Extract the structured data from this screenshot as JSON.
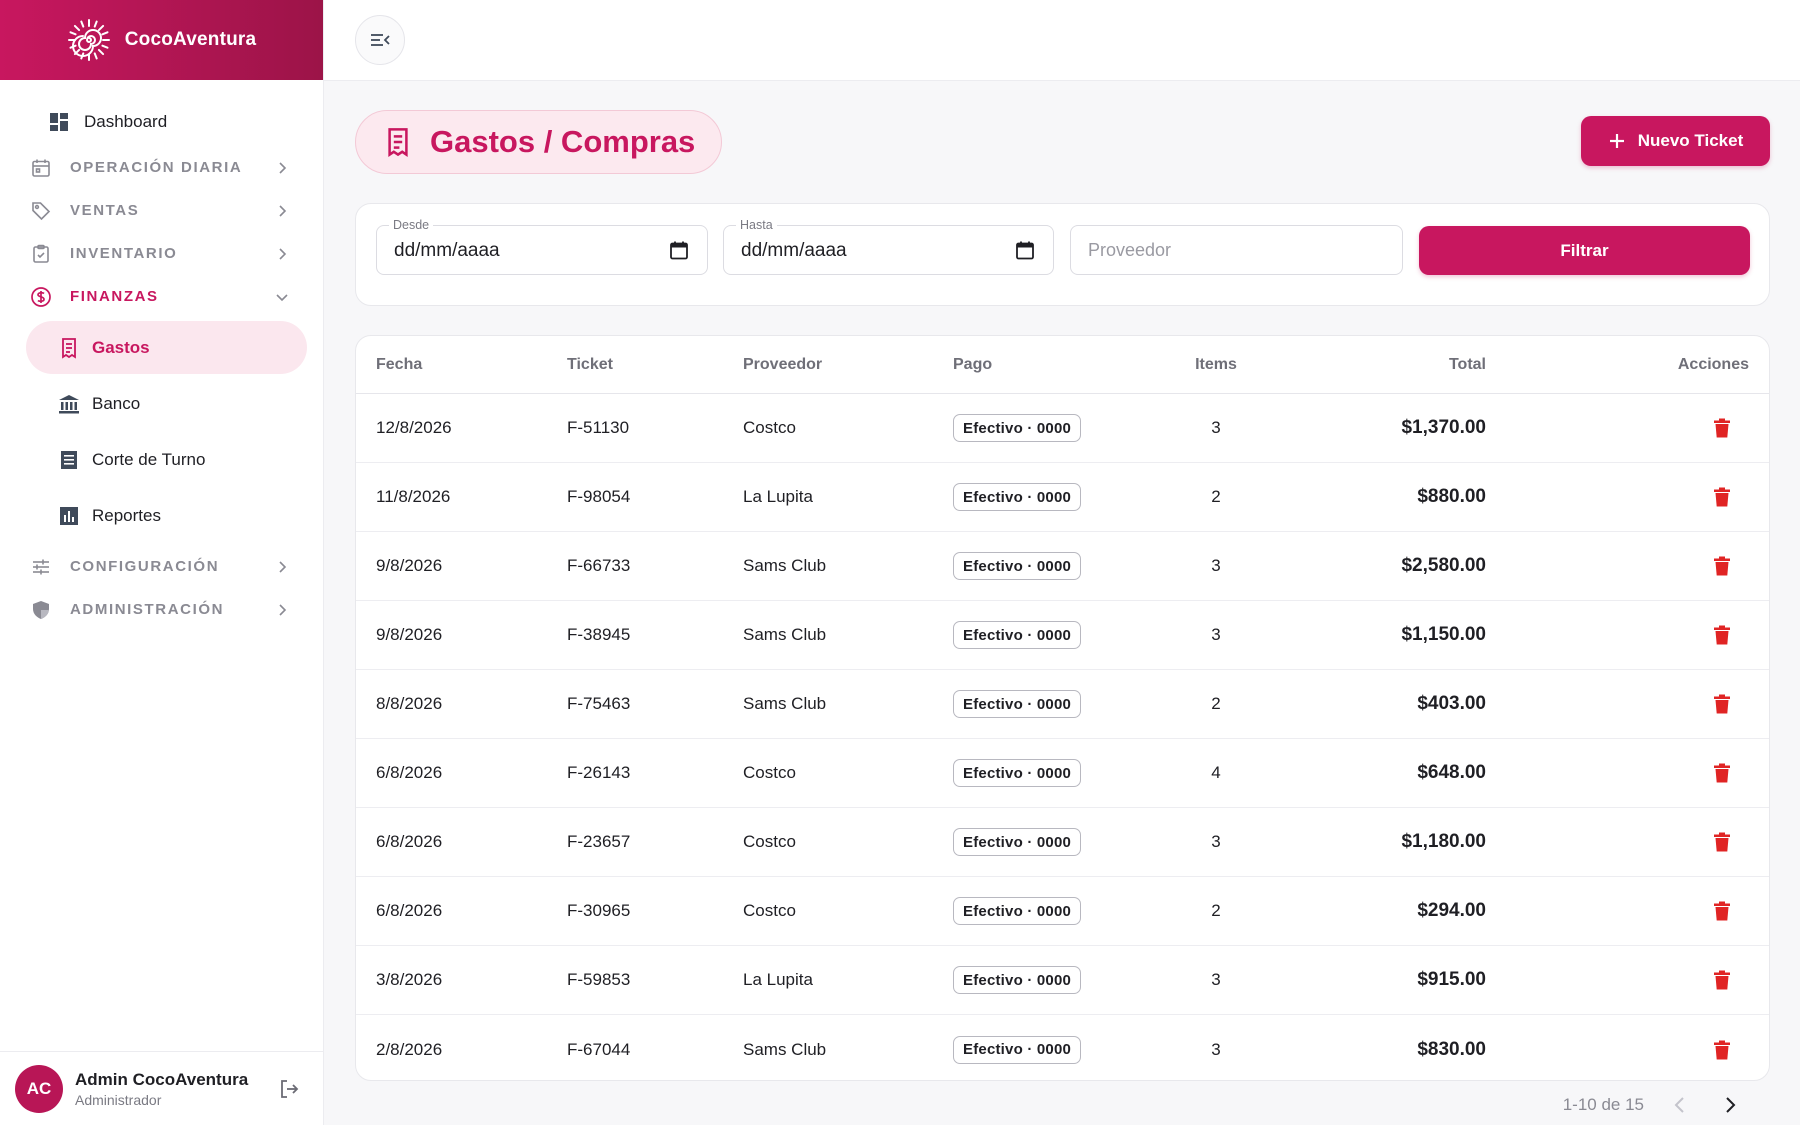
{
  "brand": {
    "name": "CocoAventura"
  },
  "colors": {
    "accent": "#c8175f",
    "accent_soft": "#fce9ef",
    "danger": "#e02424"
  },
  "sidebar": {
    "dashboard": {
      "label": "Dashboard",
      "icon": "dashboard-icon"
    },
    "sections": [
      {
        "label": "OPERACIÓN DIARIA",
        "icon": "calendar-icon"
      },
      {
        "label": "VENTAS",
        "icon": "tag-icon"
      },
      {
        "label": "INVENTARIO",
        "icon": "clipboard-icon"
      },
      {
        "label": "FINANZAS",
        "icon": "dollar-circle-icon",
        "open": true
      },
      {
        "label": "CONFIGURACIÓN",
        "icon": "sliders-icon"
      },
      {
        "label": "ADMINISTRACIÓN",
        "icon": "shield-icon"
      }
    ],
    "finanzas_items": [
      {
        "label": "Gastos",
        "icon": "receipt-icon",
        "active": true
      },
      {
        "label": "Banco",
        "icon": "bank-icon"
      },
      {
        "label": "Corte de Turno",
        "icon": "list-icon"
      },
      {
        "label": "Reportes",
        "icon": "bar-chart-icon"
      }
    ]
  },
  "user": {
    "initials": "AC",
    "name": "Admin CocoAventura",
    "role": "Administrador"
  },
  "page": {
    "title": "Gastos / Compras",
    "new_button": "Nuevo Ticket"
  },
  "filters": {
    "desde": {
      "label": "Desde",
      "value": "dd/mm/aaaa"
    },
    "hasta": {
      "label": "Hasta",
      "value": "dd/mm/aaaa"
    },
    "proveedor": {
      "placeholder": "Proveedor"
    },
    "submit": "Filtrar"
  },
  "table": {
    "columns": [
      "Fecha",
      "Ticket",
      "Proveedor",
      "Pago",
      "Items",
      "Total",
      "Acciones"
    ],
    "rows": [
      {
        "fecha": "12/8/2026",
        "ticket": "F-51130",
        "proveedor": "Costco",
        "pago": "Efectivo · 0000",
        "items": "3",
        "total": "$1,370.00"
      },
      {
        "fecha": "11/8/2026",
        "ticket": "F-98054",
        "proveedor": "La Lupita",
        "pago": "Efectivo · 0000",
        "items": "2",
        "total": "$880.00"
      },
      {
        "fecha": "9/8/2026",
        "ticket": "F-66733",
        "proveedor": "Sams Club",
        "pago": "Efectivo · 0000",
        "items": "3",
        "total": "$2,580.00"
      },
      {
        "fecha": "9/8/2026",
        "ticket": "F-38945",
        "proveedor": "Sams Club",
        "pago": "Efectivo · 0000",
        "items": "3",
        "total": "$1,150.00"
      },
      {
        "fecha": "8/8/2026",
        "ticket": "F-75463",
        "proveedor": "Sams Club",
        "pago": "Efectivo · 0000",
        "items": "2",
        "total": "$403.00"
      },
      {
        "fecha": "6/8/2026",
        "ticket": "F-26143",
        "proveedor": "Costco",
        "pago": "Efectivo · 0000",
        "items": "4",
        "total": "$648.00"
      },
      {
        "fecha": "6/8/2026",
        "ticket": "F-23657",
        "proveedor": "Costco",
        "pago": "Efectivo · 0000",
        "items": "3",
        "total": "$1,180.00"
      },
      {
        "fecha": "6/8/2026",
        "ticket": "F-30965",
        "proveedor": "Costco",
        "pago": "Efectivo · 0000",
        "items": "2",
        "total": "$294.00"
      },
      {
        "fecha": "3/8/2026",
        "ticket": "F-59853",
        "proveedor": "La Lupita",
        "pago": "Efectivo · 0000",
        "items": "3",
        "total": "$915.00"
      },
      {
        "fecha": "2/8/2026",
        "ticket": "F-67044",
        "proveedor": "Sams Club",
        "pago": "Efectivo · 0000",
        "items": "3",
        "total": "$830.00"
      }
    ]
  },
  "pagination": {
    "label": "1-10 de 15"
  }
}
